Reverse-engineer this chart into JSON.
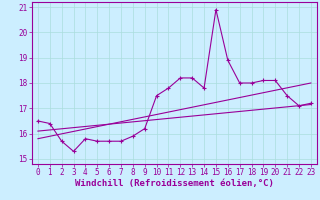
{
  "xlabel": "Windchill (Refroidissement éolien,°C)",
  "background_color": "#cceeff",
  "line_color": "#990099",
  "grid_color": "#aadddd",
  "xlim": [
    -0.5,
    23.5
  ],
  "ylim": [
    14.8,
    21.2
  ],
  "xticks": [
    0,
    1,
    2,
    3,
    4,
    5,
    6,
    7,
    8,
    9,
    10,
    11,
    12,
    13,
    14,
    15,
    16,
    17,
    18,
    19,
    20,
    21,
    22,
    23
  ],
  "yticks": [
    15,
    16,
    17,
    18,
    19,
    20,
    21
  ],
  "series1_x": [
    0,
    1,
    2,
    3,
    4,
    5,
    6,
    7,
    8,
    9,
    10,
    11,
    12,
    13,
    14,
    15,
    16,
    17,
    18,
    19,
    20,
    21,
    22,
    23
  ],
  "series1_y": [
    16.5,
    16.4,
    15.7,
    15.3,
    15.8,
    15.7,
    15.7,
    15.7,
    15.9,
    16.2,
    17.5,
    17.8,
    18.2,
    18.2,
    17.8,
    20.9,
    18.9,
    18.0,
    18.0,
    18.1,
    18.1,
    17.5,
    17.1,
    17.2
  ],
  "trend1_x": [
    0,
    23
  ],
  "trend1_y": [
    16.1,
    17.15
  ],
  "trend2_x": [
    0,
    23
  ],
  "trend2_y": [
    15.8,
    18.0
  ],
  "tick_fontsize": 5.5,
  "xlabel_fontsize": 6.5
}
